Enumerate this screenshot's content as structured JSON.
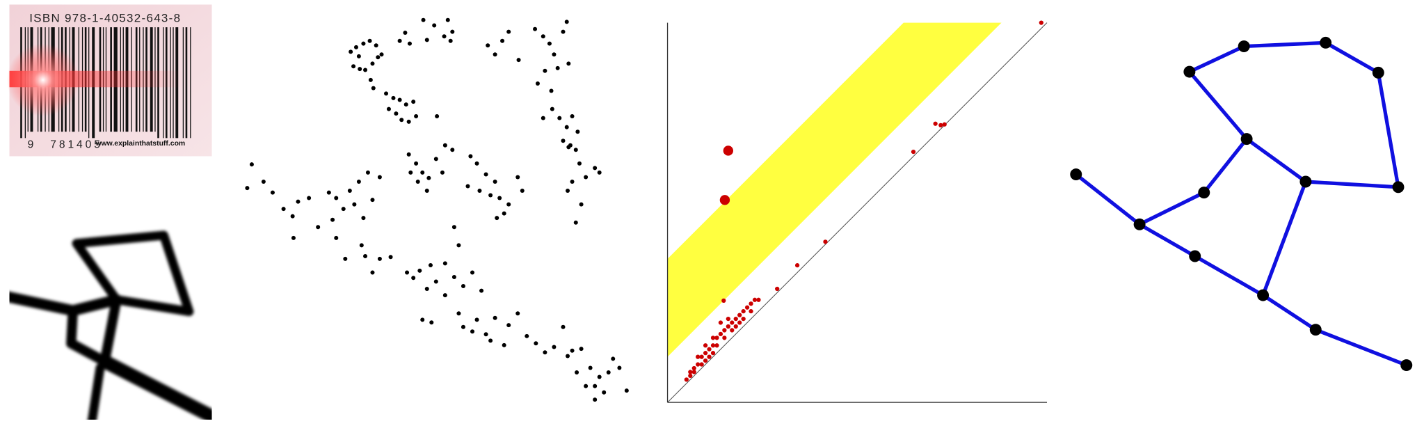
{
  "barcode": {
    "isbn": "ISBN 978-1-40532-643-8",
    "digits_lead": "9",
    "digits": "781405",
    "watermark": "www.explainthatstuff.com"
  },
  "chart_data": [
    {
      "type": "scatter",
      "color": "#000000",
      "xlim": [
        262,
        700
      ],
      "ylim": [
        450,
        15
      ],
      "x": [
        386,
        392,
        400,
        407,
        414,
        389,
        396,
        402,
        410,
        416,
        408,
        411,
        420,
        395,
        440,
        446,
        451,
        466,
        470,
        478,
        489,
        493,
        496,
        498,
        537,
        545,
        553,
        560,
        571,
        589,
        598,
        605,
        610,
        624,
        620,
        614,
        600,
        607,
        592,
        626,
        598,
        608,
        616,
        624,
        630,
        636,
        620,
        626,
        634,
        638,
        645,
        630,
        655,
        660,
        625,
        640,
        634,
        628,
        425,
        433,
        440,
        447,
        455,
        428,
        436,
        442,
        450,
        458,
        481,
        277,
        272,
        290,
        300,
        312,
        322,
        328,
        340,
        350,
        362,
        370,
        378,
        385,
        390,
        395,
        400,
        410,
        418,
        405,
        398,
        370,
        380,
        323,
        366,
        450,
        458,
        465,
        472,
        460,
        470,
        480,
        490,
        498,
        487,
        452,
        518,
        525,
        535,
        545,
        540,
        550,
        560,
        570,
        575,
        528,
        515,
        555,
        547,
        402,
        418,
        430,
        410,
        448,
        455,
        462,
        470,
        480,
        490,
        500,
        510,
        520,
        530,
        505,
        500,
        474,
        490,
        465,
        475,
        505,
        510,
        525,
        535,
        545,
        560,
        570,
        580,
        555,
        540,
        520,
        590,
        600,
        610,
        625,
        630,
        620,
        640,
        635,
        650,
        655,
        660,
        670,
        675,
        682,
        690,
        665,
        645,
        655
      ],
      "values": [
        57,
        52,
        48,
        45,
        50,
        73,
        76,
        77,
        70,
        63,
        88,
        97,
        60,
        62,
        45,
        36,
        48,
        22,
        44,
        28,
        40,
        22,
        45,
        35,
        50,
        60,
        45,
        35,
        66,
        32,
        40,
        48,
        60,
        24,
        35,
        75,
        78,
        100,
        92,
        70,
        130,
        120,
        130,
        140,
        128,
        145,
        155,
        162,
        165,
        180,
        195,
        200,
        185,
        190,
        210,
        225,
        245,
        160,
        103,
        108,
        110,
        115,
        112,
        120,
        125,
        132,
        134,
        128,
        128,
        181,
        207,
        200,
        212,
        230,
        238,
        222,
        218,
        250,
        212,
        218,
        230,
        210,
        225,
        200,
        240,
        220,
        195,
        190,
        270,
        262,
        285,
        262,
        242,
        170,
        180,
        190,
        196,
        200,
        210,
        175,
        160,
        165,
        190,
        190,
        172,
        180,
        192,
        200,
        215,
        218,
        225,
        195,
        210,
        210,
        205,
        235,
        240,
        282,
        285,
        283,
        300,
        300,
        306,
        298,
        318,
        310,
        325,
        305,
        315,
        300,
        320,
        270,
        250,
        292,
        290,
        352,
        355,
        345,
        360,
        352,
        368,
        350,
        358,
        345,
        370,
        380,
        375,
        365,
        378,
        388,
        382,
        392,
        386,
        360,
        384,
        410,
        405,
        425,
        415,
        410,
        395,
        405,
        430,
        432,
        425,
        440
      ]
    },
    {
      "type": "scatter",
      "xlim": [
        0,
        1
      ],
      "ylim": [
        0,
        1
      ],
      "band": [
        0.12,
        0.378
      ],
      "band_color": "#ffff40",
      "diagonal": true,
      "series": [
        {
          "color": "#cc0000",
          "marker_size": 2.4,
          "x": [
            0.985,
            0.706,
            0.72,
            0.73,
            0.648,
            0.416,
            0.342,
            0.289,
            0.148,
            0.05,
            0.06,
            0.07,
            0.08,
            0.09,
            0.1,
            0.11,
            0.12,
            0.13,
            0.14,
            0.15,
            0.16,
            0.17,
            0.18,
            0.19,
            0.2,
            0.21,
            0.22,
            0.23,
            0.24,
            0.08,
            0.1,
            0.12,
            0.14,
            0.16,
            0.13,
            0.15,
            0.17,
            0.19,
            0.11,
            0.07,
            0.09,
            0.06,
            0.2,
            0.18,
            0.22,
            0.1,
            0.12
          ],
          "values": [
            1.0,
            0.734,
            0.73,
            0.732,
            0.66,
            0.423,
            0.361,
            0.299,
            0.268,
            0.06,
            0.08,
            0.09,
            0.1,
            0.12,
            0.13,
            0.14,
            0.15,
            0.17,
            0.18,
            0.19,
            0.2,
            0.21,
            0.22,
            0.23,
            0.24,
            0.25,
            0.26,
            0.27,
            0.27,
            0.12,
            0.15,
            0.17,
            0.21,
            0.22,
            0.15,
            0.17,
            0.19,
            0.21,
            0.12,
            0.08,
            0.1,
            0.07,
            0.22,
            0.2,
            0.24,
            0.11,
            0.13
          ]
        },
        {
          "color": "#cc0000",
          "marker_size": 5.5,
          "x": [
            0.16,
            0.151
          ],
          "values": [
            0.663,
            0.533
          ]
        }
      ]
    }
  ]
}
